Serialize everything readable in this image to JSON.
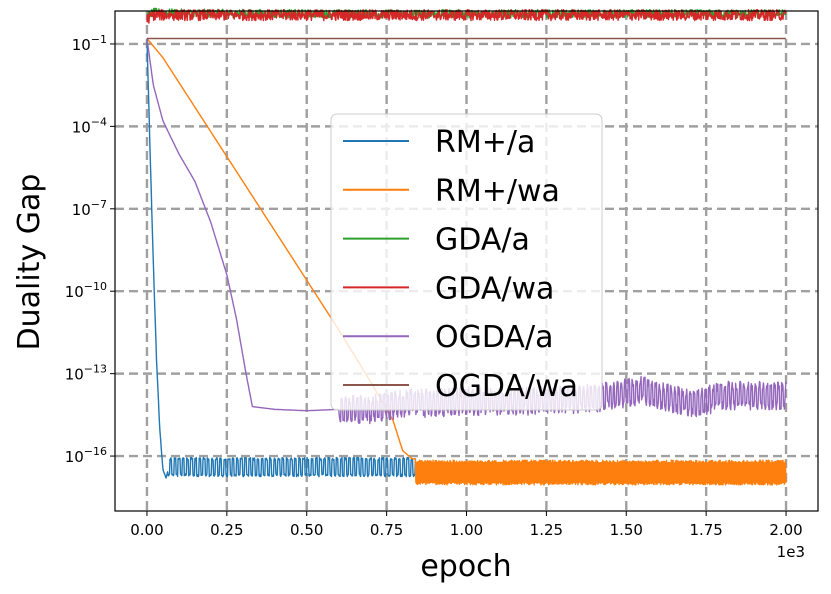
{
  "chart_data": {
    "type": "line",
    "title": "",
    "xlabel": "epoch",
    "ylabel": "Duality Gap",
    "x_multiplier_label": "1e3",
    "xlim": [
      -0.1,
      2.1
    ],
    "ylim_log10": [
      -18.0,
      0.2
    ],
    "yscale": "log",
    "grid": true,
    "legend_position": "center",
    "x_ticks": [
      {
        "value": 0.0,
        "label": "0.00"
      },
      {
        "value": 0.25,
        "label": "0.25"
      },
      {
        "value": 0.5,
        "label": "0.50"
      },
      {
        "value": 0.75,
        "label": "0.75"
      },
      {
        "value": 1.0,
        "label": "1.00"
      },
      {
        "value": 1.25,
        "label": "1.25"
      },
      {
        "value": 1.5,
        "label": "1.50"
      },
      {
        "value": 1.75,
        "label": "1.75"
      },
      {
        "value": 2.0,
        "label": "2.00"
      }
    ],
    "y_ticks": [
      {
        "exp": -1,
        "base": "10",
        "power": "−1"
      },
      {
        "exp": -4,
        "base": "10",
        "power": "−4"
      },
      {
        "exp": -7,
        "base": "10",
        "power": "−7"
      },
      {
        "exp": -10,
        "base": "10",
        "power": "−10"
      },
      {
        "exp": -13,
        "base": "10",
        "power": "−13"
      },
      {
        "exp": -16,
        "base": "10",
        "power": "−16"
      }
    ],
    "series": [
      {
        "name": "RM+/a",
        "color": "#1f77b4",
        "points": [
          [
            0.0,
            -0.8
          ],
          [
            0.01,
            -5.0
          ],
          [
            0.02,
            -9.0
          ],
          [
            0.03,
            -12.5
          ],
          [
            0.04,
            -15.0
          ],
          [
            0.05,
            -16.5
          ],
          [
            0.06,
            -16.8
          ],
          [
            0.07,
            -16.3
          ],
          [
            0.08,
            -16.0
          ],
          [
            0.2,
            -16.0
          ],
          [
            0.5,
            -16.0
          ],
          [
            0.84,
            -16.0
          ]
        ],
        "oscillation": {
          "from": 0.065,
          "to": 0.84,
          "low": -16.75,
          "high": -16.05,
          "period": 0.013
        }
      },
      {
        "name": "RM+/wa",
        "color": "#ff7f0e",
        "points": [
          [
            0.0,
            -0.8
          ],
          [
            0.05,
            -1.5
          ],
          [
            0.1,
            -2.4
          ],
          [
            0.2,
            -4.2
          ],
          [
            0.3,
            -6.0
          ],
          [
            0.4,
            -7.8
          ],
          [
            0.5,
            -9.6
          ],
          [
            0.6,
            -11.4
          ],
          [
            0.7,
            -13.3
          ],
          [
            0.77,
            -14.7
          ],
          [
            0.8,
            -15.8
          ],
          [
            0.83,
            -16.1
          ],
          [
            2.0,
            -16.1
          ]
        ],
        "oscillation": {
          "from": 0.84,
          "to": 2.0,
          "low": -17.05,
          "high": -16.15,
          "period": 0.0035
        }
      },
      {
        "name": "GDA/a",
        "color": "#2ca02c",
        "points": [
          [
            0.0,
            0.0
          ],
          [
            0.02,
            0.15
          ],
          [
            0.1,
            0.12
          ],
          [
            0.5,
            0.1
          ],
          [
            1.0,
            0.1
          ],
          [
            1.5,
            0.1
          ],
          [
            2.0,
            0.1
          ]
        ],
        "noise": 0.15
      },
      {
        "name": "GDA/wa",
        "color": "#d62728",
        "points": [
          [
            0.0,
            -0.1
          ],
          [
            0.02,
            0.05
          ],
          [
            0.1,
            0.05
          ],
          [
            0.5,
            0.05
          ],
          [
            1.0,
            0.05
          ],
          [
            1.5,
            0.05
          ],
          [
            2.0,
            0.05
          ]
        ],
        "noise": 0.2
      },
      {
        "name": "OGDA/a",
        "color": "#9467bd",
        "points": [
          [
            0.0,
            -0.8
          ],
          [
            0.02,
            -2.5
          ],
          [
            0.05,
            -3.8
          ],
          [
            0.1,
            -5.0
          ],
          [
            0.15,
            -6.0
          ],
          [
            0.2,
            -7.5
          ],
          [
            0.25,
            -9.4
          ],
          [
            0.28,
            -11.0
          ],
          [
            0.31,
            -13.0
          ],
          [
            0.33,
            -14.2
          ],
          [
            0.4,
            -14.3
          ],
          [
            0.5,
            -14.35
          ],
          [
            0.6,
            -14.3
          ],
          [
            0.7,
            -14.3
          ],
          [
            0.8,
            -14.1
          ],
          [
            1.0,
            -14.0
          ],
          [
            1.2,
            -14.0
          ],
          [
            1.4,
            -13.9
          ],
          [
            1.55,
            -13.6
          ],
          [
            1.6,
            -13.8
          ],
          [
            1.72,
            -14.1
          ],
          [
            1.8,
            -13.8
          ],
          [
            2.0,
            -13.8
          ]
        ],
        "oscillation": {
          "from": 0.6,
          "to": 2.0,
          "low": -0.35,
          "high": 0.35,
          "period": 0.012,
          "relative": true
        }
      },
      {
        "name": "OGDA/wa",
        "color": "#8c564b",
        "points": [
          [
            0.0,
            -0.8
          ],
          [
            2.0,
            -0.8
          ]
        ]
      }
    ]
  }
}
